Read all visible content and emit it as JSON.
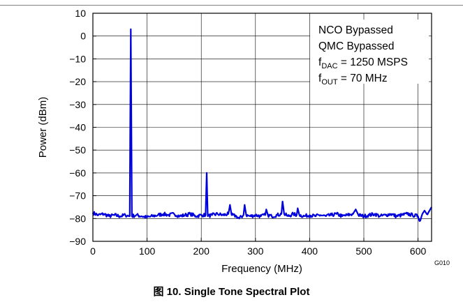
{
  "chart_data": {
    "type": "line",
    "xlabel": "Frequency (MHz)",
    "ylabel": "Power (dBm)",
    "xlim": [
      0,
      625
    ],
    "ylim": [
      -90,
      10
    ],
    "xticks": [
      0,
      100,
      200,
      300,
      400,
      500,
      600
    ],
    "yticks": [
      10,
      0,
      -10,
      -20,
      -30,
      -40,
      -50,
      -60,
      -70,
      -80,
      -90
    ],
    "grid": true,
    "line_color": "#0000dd",
    "noise_floor_dBm": -78.5,
    "series": [
      {
        "points": [
          [
            0,
            -77.5
          ],
          [
            10,
            -78.5
          ],
          [
            20,
            -78
          ],
          [
            30,
            -79
          ],
          [
            40,
            -78.5
          ],
          [
            50,
            -79
          ],
          [
            60,
            -78.5
          ],
          [
            68,
            -79
          ],
          [
            70,
            3
          ],
          [
            72,
            -79
          ],
          [
            80,
            -78.5
          ],
          [
            90,
            -79
          ],
          [
            100,
            -79.5
          ],
          [
            110,
            -79
          ],
          [
            120,
            -78.5
          ],
          [
            130,
            -78
          ],
          [
            140,
            -78.5
          ],
          [
            150,
            -78
          ],
          [
            160,
            -79
          ],
          [
            170,
            -78.5
          ],
          [
            180,
            -78
          ],
          [
            190,
            -79
          ],
          [
            200,
            -78.5
          ],
          [
            208,
            -78.5
          ],
          [
            210,
            -60
          ],
          [
            212,
            -79
          ],
          [
            220,
            -78.5
          ],
          [
            230,
            -78
          ],
          [
            240,
            -78.5
          ],
          [
            250,
            -78
          ],
          [
            253,
            -74
          ],
          [
            256,
            -78.5
          ],
          [
            265,
            -79
          ],
          [
            270,
            -80
          ],
          [
            278,
            -78.5
          ],
          [
            280,
            -74
          ],
          [
            283,
            -78.5
          ],
          [
            290,
            -79
          ],
          [
            300,
            -78.5
          ],
          [
            310,
            -79
          ],
          [
            318,
            -78.5
          ],
          [
            320,
            -76
          ],
          [
            323,
            -78.5
          ],
          [
            330,
            -79
          ],
          [
            340,
            -78.5
          ],
          [
            348,
            -78
          ],
          [
            350,
            -72.5
          ],
          [
            353,
            -78
          ],
          [
            360,
            -79
          ],
          [
            370,
            -78
          ],
          [
            376,
            -78.5
          ],
          [
            378,
            -75.5
          ],
          [
            381,
            -78.5
          ],
          [
            390,
            -79
          ],
          [
            400,
            -78.5
          ],
          [
            410,
            -79
          ],
          [
            420,
            -78.5
          ],
          [
            430,
            -79
          ],
          [
            440,
            -78.5
          ],
          [
            450,
            -78
          ],
          [
            460,
            -79
          ],
          [
            470,
            -78.5
          ],
          [
            480,
            -78
          ],
          [
            485,
            -76
          ],
          [
            490,
            -78.5
          ],
          [
            500,
            -79
          ],
          [
            510,
            -78.5
          ],
          [
            520,
            -78
          ],
          [
            530,
            -79
          ],
          [
            540,
            -78.5
          ],
          [
            550,
            -78
          ],
          [
            560,
            -79
          ],
          [
            570,
            -78.5
          ],
          [
            580,
            -78
          ],
          [
            590,
            -78.5
          ],
          [
            600,
            -79
          ],
          [
            604,
            -81
          ],
          [
            608,
            -78
          ],
          [
            612,
            -76.5
          ],
          [
            616,
            -78
          ],
          [
            620,
            -77
          ],
          [
            625,
            -75
          ]
        ]
      }
    ]
  },
  "annotations": {
    "line1": "NCO Bypassed",
    "line2": "QMC Bypassed",
    "line3_main": "f",
    "line3_sub": "DAC",
    "line3_rest": " = 1250 MSPS",
    "line4_main": "f",
    "line4_sub": "OUT",
    "line4_rest": " = 70 MHz"
  },
  "figure_code": "G010",
  "caption": "图 10. Single Tone Spectral Plot"
}
